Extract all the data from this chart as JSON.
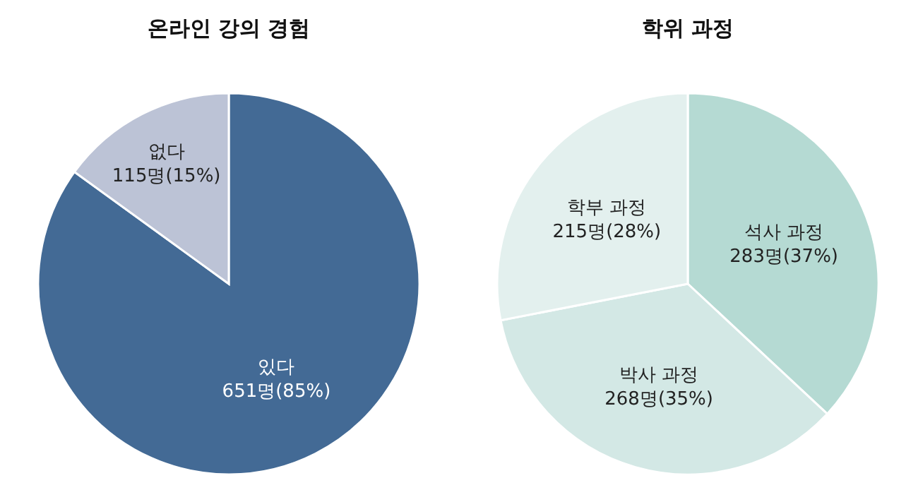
{
  "chart_data": [
    {
      "type": "pie",
      "title": "온라인 강의 경험",
      "categories": [
        "있다",
        "없다"
      ],
      "values": [
        651,
        115
      ],
      "colors": [
        "#436a95",
        "#bcc3d6"
      ],
      "value_labels": [
        "651명(85%)",
        "115명(15%)"
      ]
    },
    {
      "type": "pie",
      "title": "학위 과정",
      "categories": [
        "석사 과정",
        "박사 과정",
        "학부 과정"
      ],
      "values": [
        283,
        268,
        215
      ],
      "colors": [
        "#b5dad3",
        "#d3e8e5",
        "#e3f0ee"
      ],
      "value_labels": [
        "283명(37%)",
        "268명(35%)",
        "215명(28%)"
      ]
    }
  ]
}
